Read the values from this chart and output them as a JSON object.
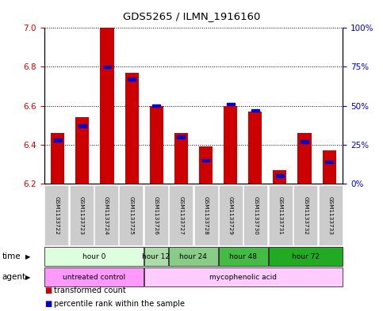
{
  "title": "GDS5265 / ILMN_1916160",
  "samples": [
    "GSM1133722",
    "GSM1133723",
    "GSM1133724",
    "GSM1133725",
    "GSM1133726",
    "GSM1133727",
    "GSM1133728",
    "GSM1133729",
    "GSM1133730",
    "GSM1133731",
    "GSM1133732",
    "GSM1133733"
  ],
  "bar_base": 6.2,
  "transformed_counts": [
    6.46,
    6.54,
    7.0,
    6.77,
    6.6,
    6.46,
    6.39,
    6.6,
    6.57,
    6.27,
    6.46,
    6.37
  ],
  "percentile_ranks": [
    28,
    37,
    75,
    67,
    50,
    30,
    15,
    51,
    47,
    5,
    27,
    14
  ],
  "ylim_left": [
    6.2,
    7.0
  ],
  "ylim_right": [
    0,
    100
  ],
  "yticks_left": [
    6.2,
    6.4,
    6.6,
    6.8,
    7.0
  ],
  "yticks_right": [
    0,
    25,
    50,
    75,
    100
  ],
  "ytick_labels_right": [
    "0%",
    "25%",
    "50%",
    "75%",
    "100%"
  ],
  "bar_color": "#cc0000",
  "percentile_color": "#0000cc",
  "time_groups": [
    {
      "label": "hour 0",
      "start": 0,
      "end": 4,
      "color": "#ddffdd"
    },
    {
      "label": "hour 12",
      "start": 4,
      "end": 5,
      "color": "#aaddaa"
    },
    {
      "label": "hour 24",
      "start": 5,
      "end": 7,
      "color": "#88cc88"
    },
    {
      "label": "hour 48",
      "start": 7,
      "end": 9,
      "color": "#44bb44"
    },
    {
      "label": "hour 72",
      "start": 9,
      "end": 12,
      "color": "#22aa22"
    }
  ],
  "agent_groups": [
    {
      "label": "untreated control",
      "start": 0,
      "end": 4,
      "color": "#ff99ff"
    },
    {
      "label": "mycophenolic acid",
      "start": 4,
      "end": 12,
      "color": "#ffccff"
    }
  ],
  "legend_items": [
    {
      "label": "transformed count",
      "color": "#cc0000"
    },
    {
      "label": "percentile rank within the sample",
      "color": "#0000cc"
    }
  ],
  "sample_box_color": "#cccccc",
  "figure_bg": "#ffffff"
}
